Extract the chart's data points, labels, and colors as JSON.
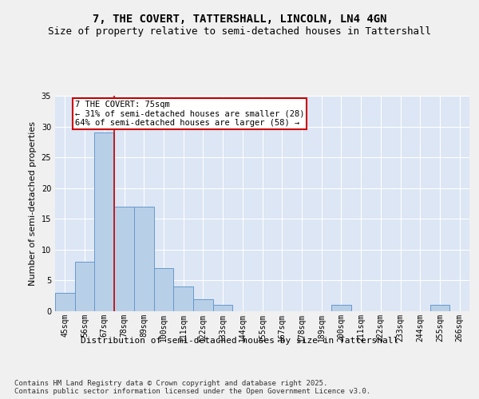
{
  "title1": "7, THE COVERT, TATTERSHALL, LINCOLN, LN4 4GN",
  "title2": "Size of property relative to semi-detached houses in Tattershall",
  "xlabel": "Distribution of semi-detached houses by size in Tattershall",
  "ylabel": "Number of semi-detached properties",
  "categories": [
    "45sqm",
    "56sqm",
    "67sqm",
    "78sqm",
    "89sqm",
    "100sqm",
    "111sqm",
    "122sqm",
    "133sqm",
    "144sqm",
    "155sqm",
    "167sqm",
    "178sqm",
    "189sqm",
    "200sqm",
    "211sqm",
    "222sqm",
    "233sqm",
    "244sqm",
    "255sqm",
    "266sqm"
  ],
  "values": [
    3,
    8,
    29,
    17,
    17,
    7,
    4,
    2,
    1,
    0,
    0,
    0,
    0,
    0,
    1,
    0,
    0,
    0,
    0,
    1,
    0
  ],
  "bar_color": "#b8cfe8",
  "bar_edge_color": "#6699cc",
  "background_color": "#dce6f5",
  "grid_color": "#ffffff",
  "red_line_x": 2.5,
  "annotation_text": "7 THE COVERT: 75sqm\n← 31% of semi-detached houses are smaller (28)\n64% of semi-detached houses are larger (58) →",
  "annotation_box_color": "#ffffff",
  "annotation_border_color": "#cc0000",
  "ylim": [
    0,
    35
  ],
  "yticks": [
    0,
    5,
    10,
    15,
    20,
    25,
    30,
    35
  ],
  "footnote": "Contains HM Land Registry data © Crown copyright and database right 2025.\nContains public sector information licensed under the Open Government Licence v3.0.",
  "title_fontsize": 10,
  "subtitle_fontsize": 9,
  "axis_label_fontsize": 8,
  "tick_fontsize": 7,
  "annotation_fontsize": 7.5,
  "footnote_fontsize": 6.5
}
